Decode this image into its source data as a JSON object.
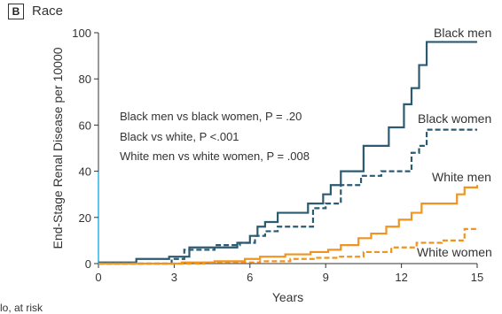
{
  "panel": {
    "badge": "B",
    "title": "Race"
  },
  "footer_note": "lo, at risk",
  "chart_data": {
    "type": "line",
    "style": "step",
    "xlabel": "Years",
    "ylabel": "End-Stage Renal Disease per 10000",
    "xlim": [
      0,
      15
    ],
    "ylim": [
      0,
      100
    ],
    "xticks": [
      0,
      3,
      6,
      9,
      12,
      15
    ],
    "yticks": [
      0,
      20,
      40,
      60,
      80,
      100
    ],
    "grid": false,
    "annotations": [
      "Black men vs black women, P = .20",
      "Black vs white, P <.001",
      "White men vs white women, P = .008"
    ],
    "series": [
      {
        "name": "Black men",
        "color": "#2b5a73",
        "dash": false,
        "x": [
          0,
          1.5,
          2.5,
          2.8,
          3.6,
          4.5,
          5.5,
          6.0,
          6.3,
          6.6,
          7.1,
          7.9,
          8.3,
          8.9,
          9.2,
          9.6,
          10.5,
          11.5,
          12.1,
          12.4,
          12.7,
          13.0,
          15.0
        ],
        "y": [
          0.5,
          2,
          2,
          3,
          7,
          7,
          9,
          12,
          16,
          18,
          22,
          22,
          26,
          30,
          34,
          40,
          51,
          59,
          69,
          76,
          86,
          96,
          96
        ]
      },
      {
        "name": "Black women",
        "color": "#2b5a73",
        "dash": true,
        "x": [
          0,
          2.9,
          3.4,
          4.6,
          5.6,
          6.2,
          6.6,
          7.1,
          8.5,
          9.0,
          9.6,
          10.4,
          11.2,
          12.4,
          12.7,
          13.0,
          15.0
        ],
        "y": [
          0,
          2,
          6,
          8,
          9,
          12,
          14,
          16,
          24,
          26,
          34,
          38,
          40,
          48,
          51,
          58,
          58
        ]
      },
      {
        "name": "White men",
        "color": "#f0941f",
        "dash": false,
        "x": [
          0,
          3.3,
          4.6,
          5.8,
          6.4,
          7.4,
          8.4,
          9.1,
          9.6,
          10.3,
          10.8,
          11.4,
          11.9,
          12.4,
          12.8,
          14.2,
          14.5,
          15.0
        ],
        "y": [
          0,
          0.5,
          1,
          2,
          3,
          4,
          5,
          6,
          8,
          11,
          13,
          16,
          19,
          22,
          26,
          30,
          33,
          34
        ]
      },
      {
        "name": "White women",
        "color": "#f0941f",
        "dash": true,
        "x": [
          0,
          4.2,
          6.4,
          7.6,
          8.6,
          9.5,
          10.5,
          11.6,
          12.6,
          13.6,
          14.5,
          15.0
        ],
        "y": [
          0,
          0.5,
          1,
          2,
          2.5,
          3,
          5,
          7,
          9,
          10,
          15,
          15
        ]
      }
    ]
  }
}
